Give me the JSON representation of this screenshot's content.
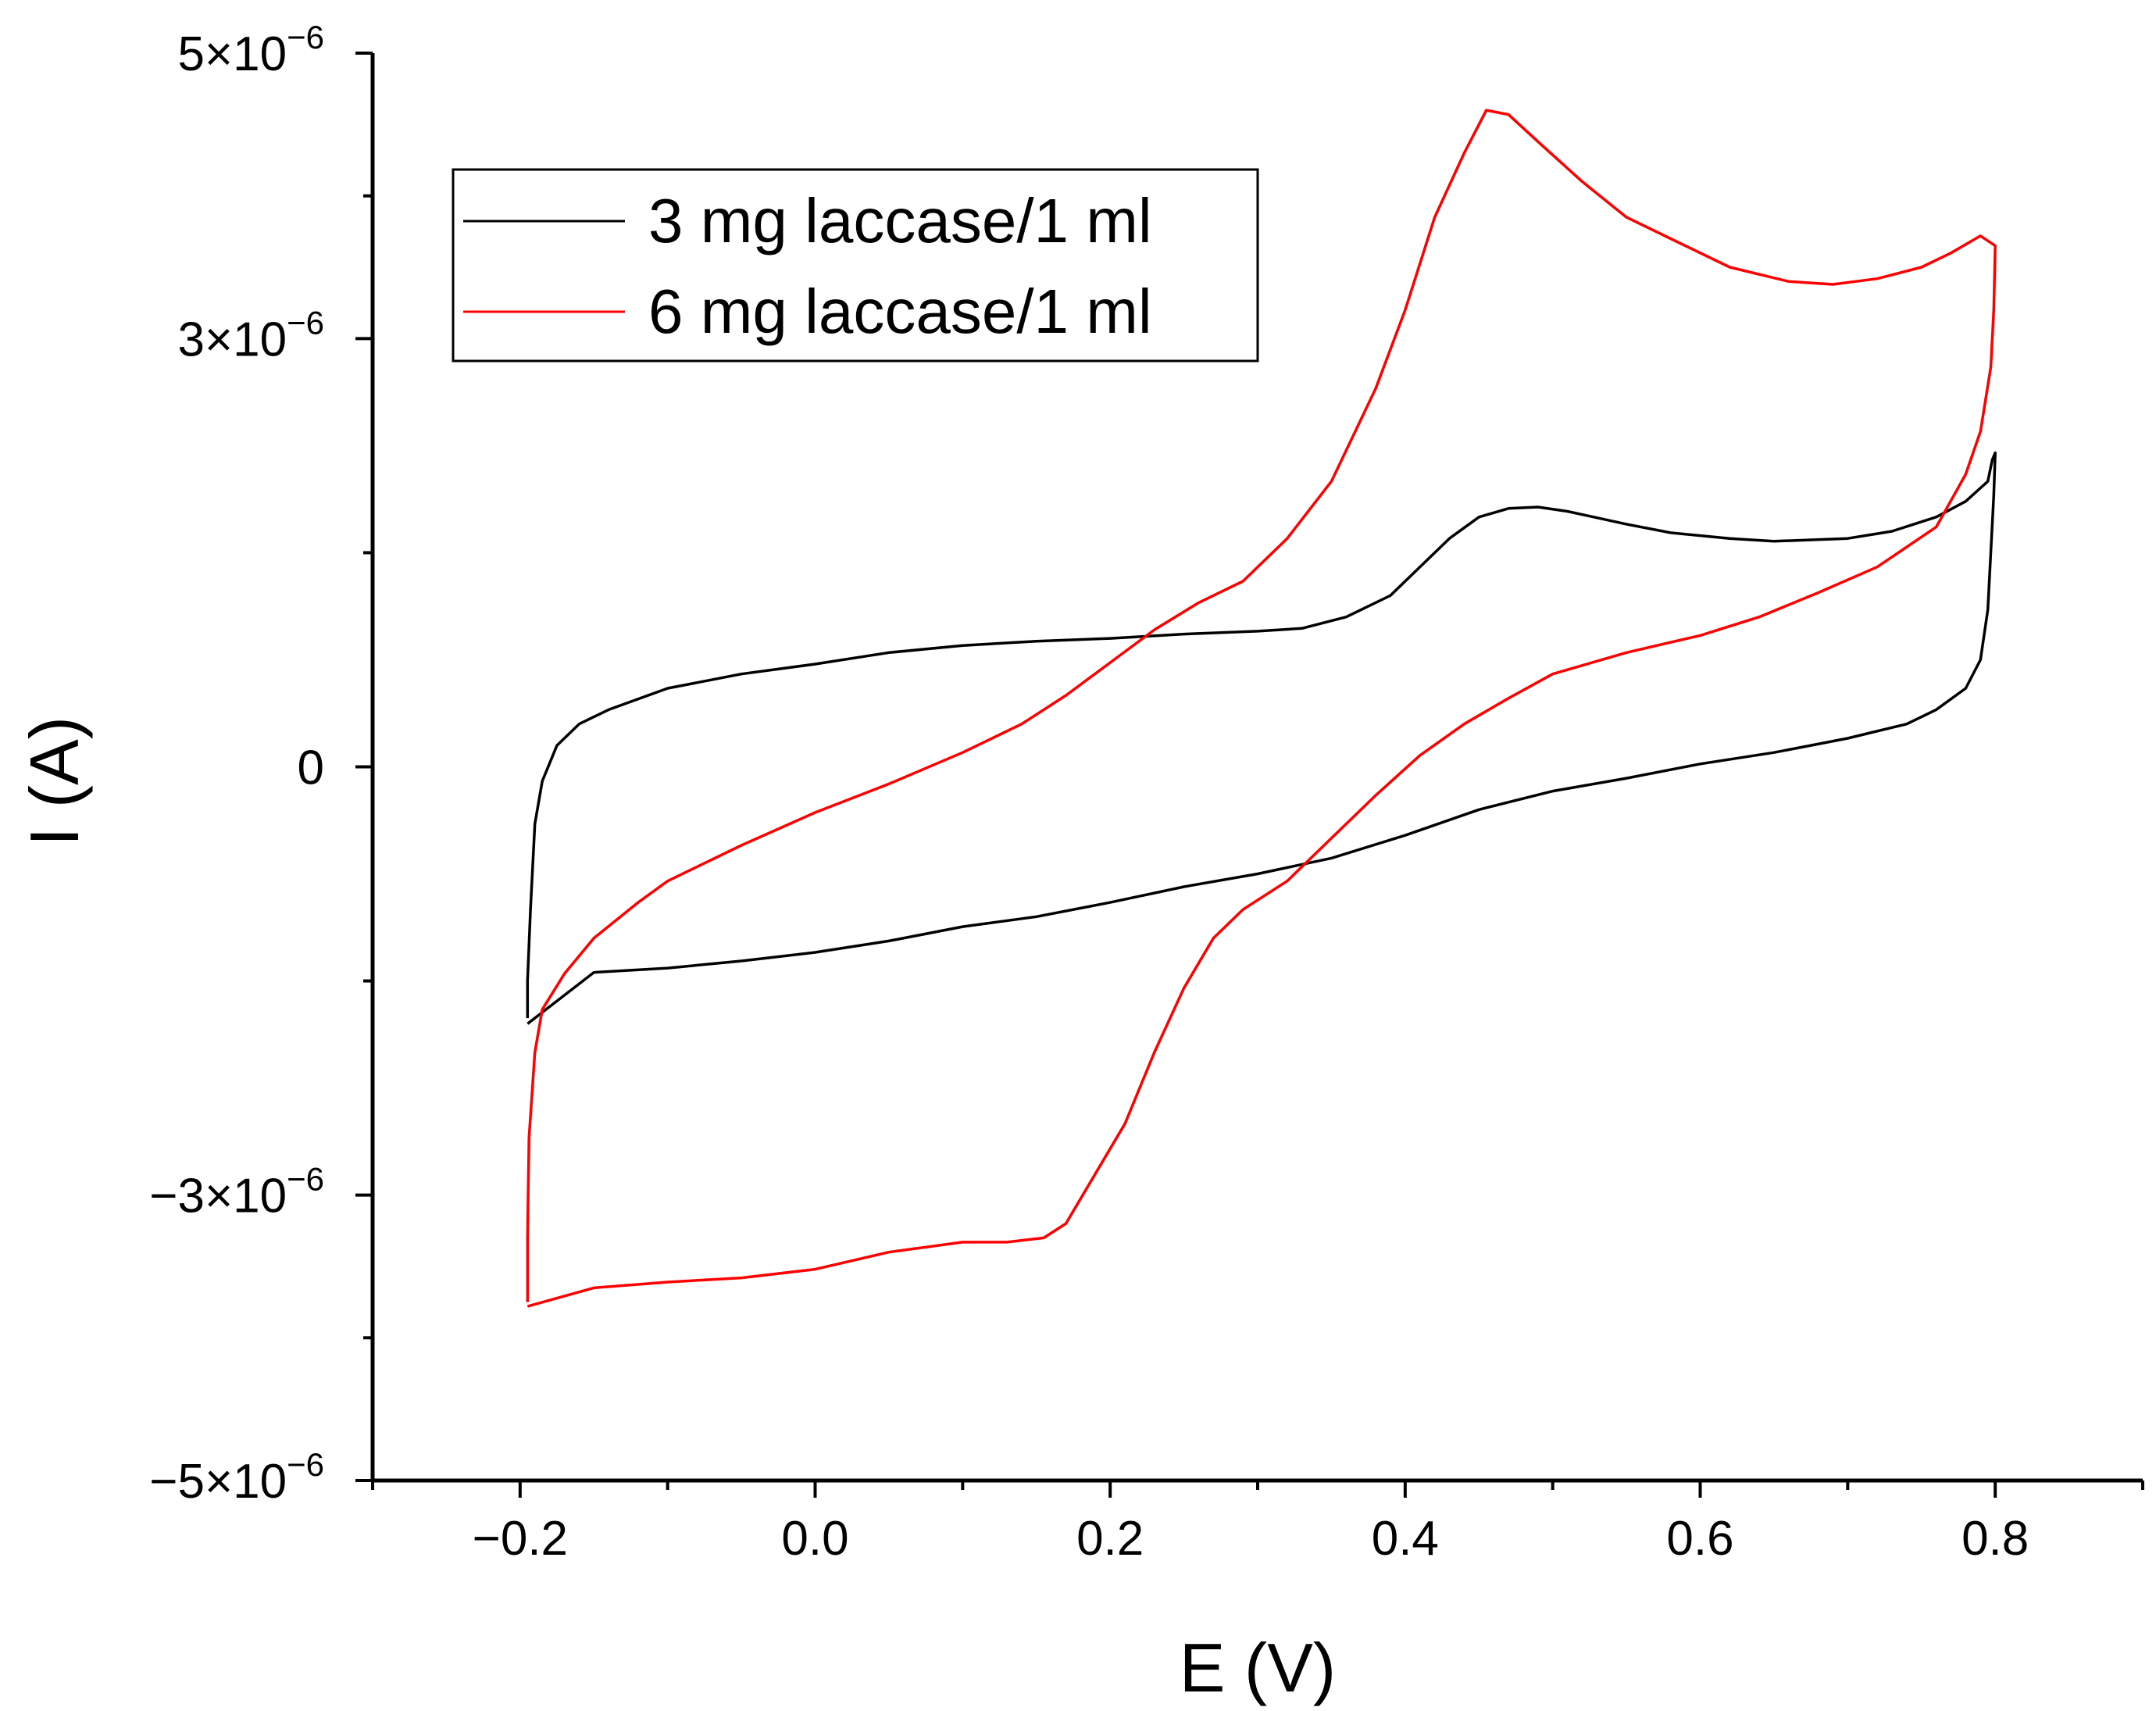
{
  "chart_data": {
    "type": "line",
    "title": "",
    "xlabel": "E (V)",
    "ylabel": "I (A)",
    "xlim": [
      -0.3,
      0.9
    ],
    "ylim": [
      -5e-06,
      5e-06
    ],
    "x_ticks": [
      -0.2,
      0.0,
      0.2,
      0.4,
      0.6,
      0.8
    ],
    "x_tick_labels": [
      "−0.2",
      "0.0",
      "0.2",
      "0.4",
      "0.6",
      "0.8"
    ],
    "y_ticks": [
      5e-06,
      3e-06,
      0,
      -3e-06,
      -5e-06
    ],
    "y_tick_labels": [
      {
        "key": "p5",
        "base": "5×10",
        "exp": "−6"
      },
      {
        "key": "p3",
        "base": "3×10",
        "exp": "−6"
      },
      {
        "key": "zero",
        "base": "0",
        "exp": ""
      },
      {
        "key": "m3",
        "base": "−3×10",
        "exp": "−6"
      },
      {
        "key": "m5",
        "base": "−5×10",
        "exp": "−6"
      }
    ],
    "grid": false,
    "legend_position": "top-left",
    "series": [
      {
        "name": "3 mg laccase/1 ml",
        "color": "#000000",
        "points": [
          [
            -0.195,
            -1.76e-06
          ],
          [
            -0.195,
            -1.5e-06
          ],
          [
            -0.193,
            -1e-06
          ],
          [
            -0.19,
            -4e-07
          ],
          [
            -0.185,
            -1e-07
          ],
          [
            -0.175,
            1.5e-07
          ],
          [
            -0.16,
            3e-07
          ],
          [
            -0.14,
            4e-07
          ],
          [
            -0.1,
            5.5e-07
          ],
          [
            -0.05,
            6.5e-07
          ],
          [
            0.0,
            7.2e-07
          ],
          [
            0.05,
            8e-07
          ],
          [
            0.1,
            8.5e-07
          ],
          [
            0.15,
            8.8e-07
          ],
          [
            0.2,
            9e-07
          ],
          [
            0.25,
            9.3e-07
          ],
          [
            0.3,
            9.5e-07
          ],
          [
            0.33,
            9.7e-07
          ],
          [
            0.36,
            1.05e-06
          ],
          [
            0.39,
            1.2e-06
          ],
          [
            0.41,
            1.4e-06
          ],
          [
            0.43,
            1.6e-06
          ],
          [
            0.45,
            1.75e-06
          ],
          [
            0.47,
            1.81e-06
          ],
          [
            0.49,
            1.82e-06
          ],
          [
            0.51,
            1.79e-06
          ],
          [
            0.55,
            1.7e-06
          ],
          [
            0.58,
            1.64e-06
          ],
          [
            0.62,
            1.6e-06
          ],
          [
            0.65,
            1.58e-06
          ],
          [
            0.7,
            1.6e-06
          ],
          [
            0.73,
            1.65e-06
          ],
          [
            0.76,
            1.75e-06
          ],
          [
            0.78,
            1.86e-06
          ],
          [
            0.795,
            2e-06
          ],
          [
            0.798,
            2.15e-06
          ],
          [
            0.8,
            2.2e-06
          ],
          [
            0.799,
            1.9e-06
          ],
          [
            0.797,
            1.5e-06
          ],
          [
            0.795,
            1.1e-06
          ],
          [
            0.79,
            7.5e-07
          ],
          [
            0.78,
            5.5e-07
          ],
          [
            0.76,
            4e-07
          ],
          [
            0.74,
            3e-07
          ],
          [
            0.7,
            2e-07
          ],
          [
            0.65,
            1e-07
          ],
          [
            0.6,
            2e-08
          ],
          [
            0.55,
            -8e-08
          ],
          [
            0.5,
            -1.7e-07
          ],
          [
            0.45,
            -3e-07
          ],
          [
            0.4,
            -4.8e-07
          ],
          [
            0.35,
            -6.4e-07
          ],
          [
            0.3,
            -7.5e-07
          ],
          [
            0.25,
            -8.4e-07
          ],
          [
            0.2,
            -9.5e-07
          ],
          [
            0.15,
            -1.05e-06
          ],
          [
            0.1,
            -1.12e-06
          ],
          [
            0.05,
            -1.22e-06
          ],
          [
            0.0,
            -1.3e-06
          ],
          [
            -0.05,
            -1.36e-06
          ],
          [
            -0.1,
            -1.41e-06
          ],
          [
            -0.15,
            -1.44e-06
          ],
          [
            -0.195,
            -1.8e-06
          ]
        ]
      },
      {
        "name": "6 mg laccase/1 ml",
        "color": "#ff0000",
        "points": [
          [
            -0.195,
            -3.75e-06
          ],
          [
            -0.195,
            -3.3e-06
          ],
          [
            -0.194,
            -2.6e-06
          ],
          [
            -0.19,
            -2e-06
          ],
          [
            -0.185,
            -1.7e-06
          ],
          [
            -0.17,
            -1.45e-06
          ],
          [
            -0.15,
            -1.2e-06
          ],
          [
            -0.12,
            -9.5e-07
          ],
          [
            -0.1,
            -8e-07
          ],
          [
            -0.05,
            -5.5e-07
          ],
          [
            0.0,
            -3.2e-07
          ],
          [
            0.05,
            -1.2e-07
          ],
          [
            0.1,
            1e-07
          ],
          [
            0.14,
            3e-07
          ],
          [
            0.17,
            5e-07
          ],
          [
            0.2,
            7.3e-07
          ],
          [
            0.23,
            9.6e-07
          ],
          [
            0.26,
            1.15e-06
          ],
          [
            0.29,
            1.3e-06
          ],
          [
            0.32,
            1.6e-06
          ],
          [
            0.35,
            2e-06
          ],
          [
            0.38,
            2.65e-06
          ],
          [
            0.4,
            3.2e-06
          ],
          [
            0.42,
            3.85e-06
          ],
          [
            0.44,
            4.3e-06
          ],
          [
            0.455,
            4.6e-06
          ],
          [
            0.47,
            4.57e-06
          ],
          [
            0.49,
            4.38e-06
          ],
          [
            0.52,
            4.1e-06
          ],
          [
            0.55,
            3.85e-06
          ],
          [
            0.58,
            3.7e-06
          ],
          [
            0.62,
            3.5e-06
          ],
          [
            0.66,
            3.4e-06
          ],
          [
            0.69,
            3.38e-06
          ],
          [
            0.72,
            3.42e-06
          ],
          [
            0.75,
            3.5e-06
          ],
          [
            0.77,
            3.6e-06
          ],
          [
            0.79,
            3.72e-06
          ],
          [
            0.8,
            3.65e-06
          ],
          [
            0.799,
            3.2e-06
          ],
          [
            0.797,
            2.8e-06
          ],
          [
            0.79,
            2.35e-06
          ],
          [
            0.78,
            2.05e-06
          ],
          [
            0.76,
            1.68e-06
          ],
          [
            0.72,
            1.4e-06
          ],
          [
            0.68,
            1.22e-06
          ],
          [
            0.64,
            1.05e-06
          ],
          [
            0.6,
            9.2e-07
          ],
          [
            0.55,
            8e-07
          ],
          [
            0.5,
            6.5e-07
          ],
          [
            0.47,
            4.8e-07
          ],
          [
            0.44,
            3e-07
          ],
          [
            0.41,
            8e-08
          ],
          [
            0.38,
            -2e-07
          ],
          [
            0.35,
            -5e-07
          ],
          [
            0.32,
            -8e-07
          ],
          [
            0.29,
            -1e-06
          ],
          [
            0.27,
            -1.2e-06
          ],
          [
            0.25,
            -1.55e-06
          ],
          [
            0.23,
            -2e-06
          ],
          [
            0.21,
            -2.5e-06
          ],
          [
            0.19,
            -2.85e-06
          ],
          [
            0.17,
            -3.2e-06
          ],
          [
            0.155,
            -3.3e-06
          ],
          [
            0.13,
            -3.33e-06
          ],
          [
            0.1,
            -3.33e-06
          ],
          [
            0.05,
            -3.4e-06
          ],
          [
            0.0,
            -3.52e-06
          ],
          [
            -0.05,
            -3.58e-06
          ],
          [
            -0.1,
            -3.61e-06
          ],
          [
            -0.15,
            -3.65e-06
          ],
          [
            -0.195,
            -3.78e-06
          ]
        ]
      }
    ]
  }
}
